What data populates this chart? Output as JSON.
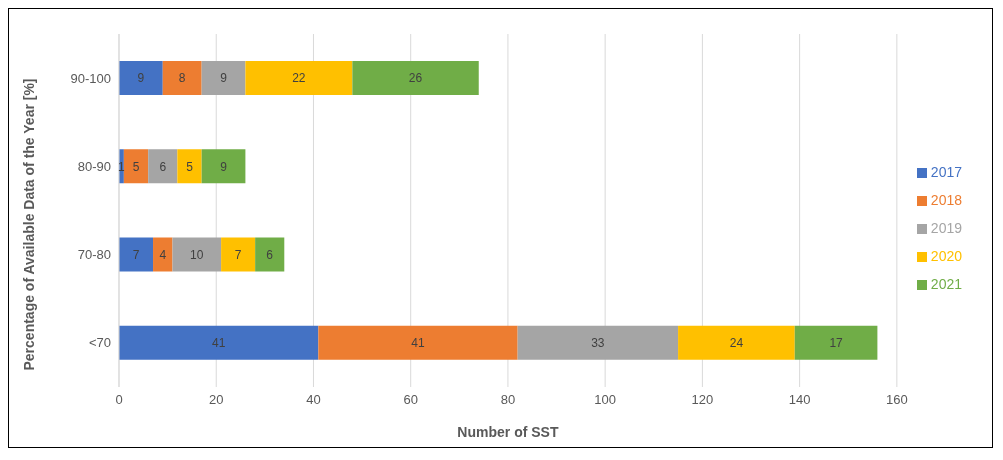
{
  "chart_data": {
    "type": "bar",
    "orientation": "horizontal",
    "stacked": true,
    "xlabel": "Number of SST",
    "ylabel": "Percentage of Available Data of the Year  [%]",
    "categories": [
      "90-100",
      "80-90",
      "70-80",
      "<70"
    ],
    "series": [
      {
        "name": "2017",
        "color": "#4472c4",
        "values": [
          9,
          1,
          7,
          41
        ]
      },
      {
        "name": "2018",
        "color": "#ed7d31",
        "values": [
          8,
          5,
          4,
          41
        ]
      },
      {
        "name": "2019",
        "color": "#a5a5a5",
        "values": [
          9,
          6,
          10,
          33
        ]
      },
      {
        "name": "2020",
        "color": "#ffc000",
        "values": [
          22,
          5,
          7,
          24
        ]
      },
      {
        "name": "2021",
        "color": "#70ad47",
        "values": [
          26,
          9,
          6,
          17
        ]
      }
    ],
    "xlim": [
      0,
      160
    ],
    "xticks": [
      0,
      20,
      40,
      60,
      80,
      100,
      120,
      140,
      160
    ],
    "grid": "x",
    "legend": "right",
    "data_labels": true
  }
}
